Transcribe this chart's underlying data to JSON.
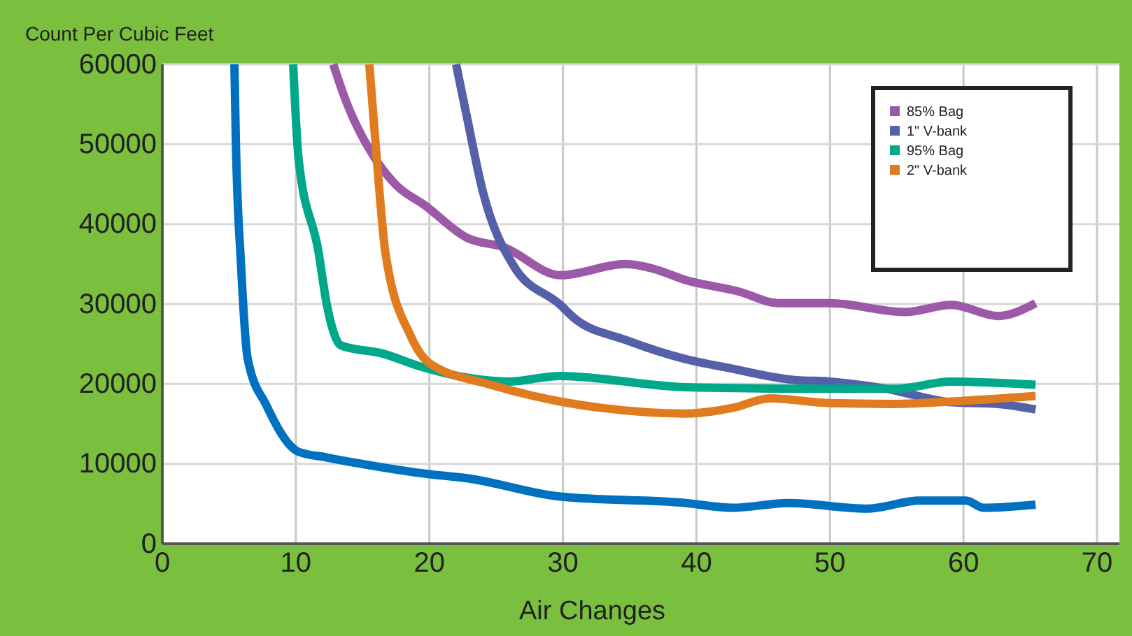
{
  "chart_data": {
    "type": "line",
    "xlabel": "Air Changes",
    "ylabel": "Count Per Cubic Feet",
    "xlim": [
      0,
      70
    ],
    "xticks": [
      0,
      10,
      20,
      30,
      40,
      50,
      60,
      70
    ],
    "ylim": [
      0,
      60000
    ],
    "yticks": [
      0,
      10000,
      20000,
      30000,
      40000,
      50000,
      60000
    ],
    "grid": true,
    "legend": "top right",
    "marker": "none",
    "line_style": "solid",
    "series": [
      {
        "name": "85% Bag",
        "color": "#9b59a8",
        "x": [
          12.8,
          13.8,
          15.9,
          17.5,
          19.7,
          22.8,
          25.6,
          29.8,
          34.7,
          36.8,
          39.2,
          43.1,
          46.2,
          50,
          55.6,
          59.1,
          62.6,
          65.4
        ],
        "values": [
          60000,
          55200,
          48300,
          44900,
          42300,
          38300,
          37100,
          33600,
          35000,
          34400,
          33000,
          31600,
          30100,
          30100,
          29000,
          29900,
          28500,
          30100
        ]
      },
      {
        "name": "1\" V-bank",
        "color": "#5460a8",
        "x": [
          22,
          22.8,
          24,
          26.3,
          29.8,
          30.8,
          34.7,
          39.2,
          42.4,
          47.3,
          50,
          54.2,
          59.1,
          62.6,
          65.4
        ],
        "values": [
          60000,
          53500,
          44100,
          34800,
          29900,
          28300,
          25500,
          23100,
          22000,
          20500,
          20300,
          19400,
          17700,
          17500,
          16800
        ]
      },
      {
        "name": "95% Bag",
        "color": "#00a88a",
        "x": [
          9.8,
          10.2,
          11.7,
          12.3,
          13.4,
          16.5,
          19.3,
          22.8,
          25.9,
          29.8,
          39.2,
          50,
          54.9,
          59.1,
          65.4
        ],
        "values": [
          60000,
          48300,
          36500,
          30100,
          24800,
          23800,
          22200,
          20800,
          20300,
          21000,
          19600,
          19400,
          19400,
          20300,
          19900
        ]
      },
      {
        "name": "2\" V-bank",
        "color": "#e07b1f",
        "x": [
          15.5,
          15.7,
          16.2,
          16.7,
          18.6,
          20,
          24.6,
          29.8,
          32.9,
          39.2,
          42.7,
          45.5,
          50,
          54.9,
          59.1,
          65.4
        ],
        "values": [
          60000,
          55800,
          45300,
          36500,
          26000,
          22600,
          19900,
          17800,
          17000,
          16300,
          17000,
          18200,
          17600,
          17500,
          17800,
          18500
        ]
      },
      {
        "color": "#0070c0",
        "x": [
          5.4,
          5.5,
          5.9,
          6.4,
          7.8,
          10.2,
          12.3,
          20,
          22.8,
          29.8,
          39.2,
          42.7,
          46.9,
          52.8,
          56.7,
          60.2,
          61.5,
          65.4
        ],
        "values": [
          60000,
          51000,
          34800,
          23100,
          17300,
          11500,
          10800,
          8700,
          8200,
          5900,
          5100,
          4500,
          5100,
          4400,
          5400,
          5400,
          4500,
          4900
        ]
      }
    ]
  }
}
